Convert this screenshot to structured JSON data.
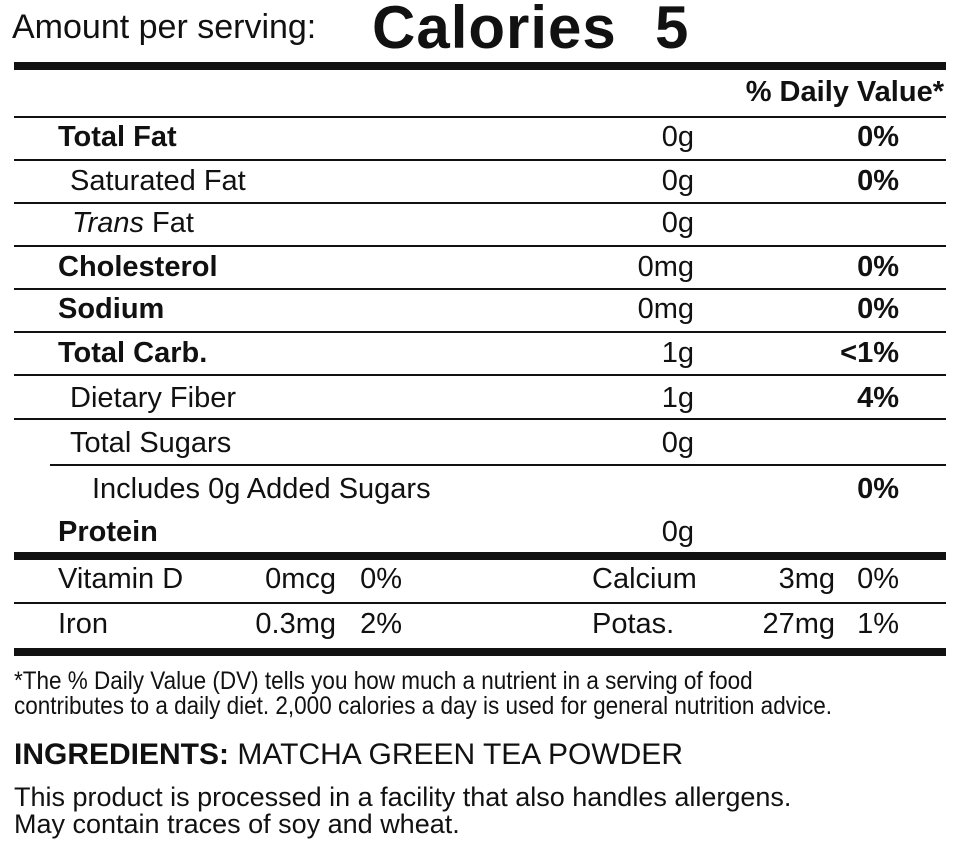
{
  "header": {
    "amount_label": "Amount per serving:",
    "calories_label": "Calories",
    "calories_value": "5"
  },
  "dv_header": "% Daily Value*",
  "rows": [
    {
      "name": "Total Fat",
      "amount": "0g",
      "dv": "0%"
    },
    {
      "name": "Saturated Fat",
      "amount": "0g",
      "dv": "0%"
    },
    {
      "name_italic": "Trans",
      "name": "Fat",
      "amount": "0g"
    },
    {
      "name": "Cholesterol",
      "amount": "0mg",
      "dv": "0%"
    },
    {
      "name": "Sodium",
      "amount": "0mg",
      "dv": "0%"
    },
    {
      "name": "Total Carb.",
      "amount": "1g",
      "dv": "<1%"
    },
    {
      "name": "Dietary Fiber",
      "amount": "1g",
      "dv": "4%"
    },
    {
      "name": "Total Sugars",
      "amount": "0g"
    },
    {
      "name": "Includes 0g Added Sugars",
      "dv": "0%"
    },
    {
      "name": "Protein",
      "amount": "0g"
    }
  ],
  "minerals": [
    [
      {
        "name": "Vitamin D",
        "amount": "0mcg",
        "dv": "0%"
      },
      {
        "name": "Calcium",
        "amount": "3mg",
        "dv": "0%"
      }
    ],
    [
      {
        "name": "Iron",
        "amount": "0.3mg",
        "dv": "2%"
      },
      {
        "name": "Potas.",
        "amount": "27mg",
        "dv": "1%"
      }
    ]
  ],
  "footnote": [
    "*The % Daily Value (DV) tells you how much a nutrient in a serving of food",
    "contributes to a daily diet. 2,000 calories a day is used for general nutrition advice."
  ],
  "ingredients": {
    "label": "INGREDIENTS:",
    "text": "MATCHA GREEN TEA POWDER"
  },
  "allergens": [
    "This product is processed in a facility that also handles allergens.",
    "May contain traces of soy and wheat."
  ]
}
